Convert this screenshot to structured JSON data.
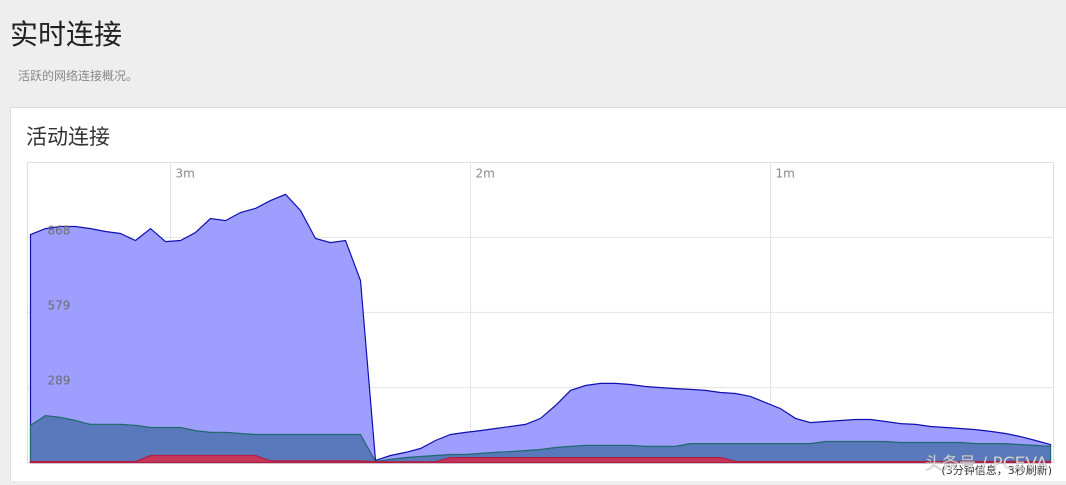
{
  "header": {
    "title": "实时连接",
    "subtitle": "活跃的网络连接概况。"
  },
  "panel": {
    "title": "活动连接"
  },
  "chart_data": {
    "type": "area",
    "grid": true,
    "x": [
      208,
      205,
      202,
      199,
      196,
      193,
      190,
      187,
      184,
      181,
      178,
      175,
      172,
      169,
      166,
      163,
      160,
      157,
      154,
      151,
      148,
      145,
      142,
      139,
      136,
      133,
      130,
      127,
      124,
      121,
      118,
      115,
      112,
      109,
      106,
      103,
      100,
      97,
      94,
      91,
      88,
      85,
      82,
      79,
      76,
      73,
      70,
      67,
      64,
      61,
      58,
      55,
      52,
      49,
      46,
      43,
      40,
      37,
      34,
      31,
      28,
      25,
      22,
      19,
      16,
      13,
      10,
      7,
      4
    ],
    "xlim": [
      208.6,
      3.4
    ],
    "xticks": [
      {
        "value": 180,
        "label": "3m"
      },
      {
        "value": 120,
        "label": "2m"
      },
      {
        "value": 60,
        "label": "1m"
      }
    ],
    "ylim": [
      0,
      1157
    ],
    "yticks": [
      289,
      579,
      868
    ],
    "series": [
      {
        "color": "#9999ff",
        "line_color": "#1010b0",
        "values": [
          879,
          902,
          910,
          910,
          902,
          891,
          883,
          856,
          902,
          852,
          856,
          887,
          941,
          933,
          964,
          980,
          1010,
          1034,
          972,
          864,
          848,
          856,
          702,
          8,
          27,
          39,
          54,
          85,
          108,
          116,
          123,
          131,
          139,
          147,
          170,
          220,
          278,
          297,
          305,
          305,
          301,
          293,
          289,
          285,
          282,
          278,
          270,
          266,
          255,
          231,
          208,
          170,
          154,
          158,
          162,
          166,
          166,
          158,
          150,
          147,
          139,
          135,
          131,
          127,
          120,
          112,
          100,
          85,
          69
        ]
      },
      {
        "color": "#5577b8",
        "line_color": "#1f6a6a",
        "values": [
          143,
          181,
          174,
          162,
          147,
          147,
          147,
          143,
          135,
          135,
          135,
          123,
          116,
          116,
          112,
          108,
          108,
          108,
          108,
          108,
          108,
          108,
          108,
          4,
          12,
          19,
          23,
          27,
          31,
          31,
          35,
          39,
          42,
          46,
          50,
          58,
          62,
          66,
          66,
          66,
          66,
          62,
          62,
          62,
          73,
          73,
          73,
          73,
          73,
          73,
          73,
          73,
          73,
          81,
          81,
          81,
          81,
          81,
          77,
          77,
          77,
          77,
          77,
          73,
          73,
          73,
          69,
          66,
          62
        ]
      },
      {
        "color": "#cc3355",
        "line_color": "#b02040",
        "values": [
          4,
          4,
          4,
          4,
          4,
          4,
          4,
          4,
          27,
          27,
          27,
          27,
          27,
          27,
          27,
          27,
          6,
          6,
          6,
          6,
          6,
          6,
          6,
          3,
          3,
          3,
          3,
          3,
          19,
          19,
          19,
          19,
          19,
          19,
          19,
          19,
          19,
          19,
          19,
          19,
          19,
          19,
          19,
          19,
          19,
          19,
          19,
          4,
          4,
          4,
          4,
          4,
          4,
          4,
          4,
          4,
          4,
          4,
          4,
          4,
          4,
          4,
          4,
          4,
          4,
          4,
          4,
          4,
          4
        ]
      }
    ],
    "footnote": "(3分钟信息，3秒刷新)",
    "watermark": "头条号 / PCEVA"
  }
}
